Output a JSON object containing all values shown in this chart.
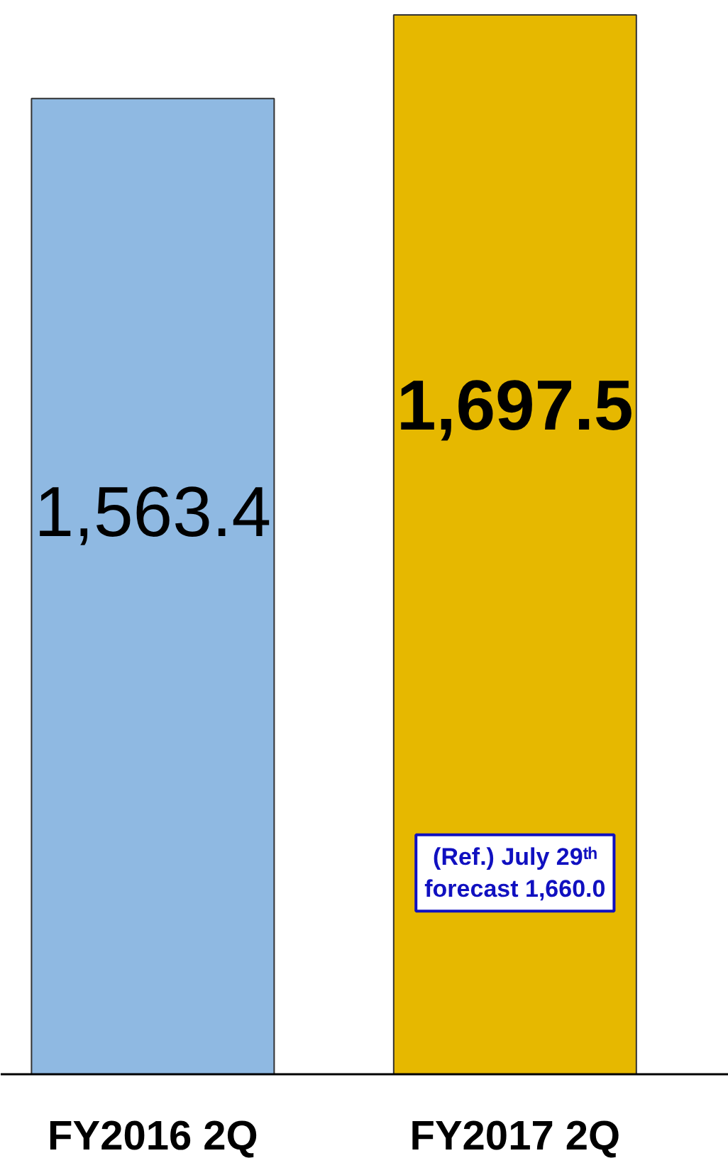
{
  "chart_data": {
    "type": "bar",
    "categories": [
      "FY2016 2Q",
      "FY2017 2Q"
    ],
    "values": [
      1563.4,
      1697.5
    ],
    "colors": [
      "#8fb9e2",
      "#e6b800"
    ],
    "value_labels": [
      "1,563.4",
      "1,697.5"
    ],
    "annotations": [
      "(Ref.) July 29ᵗʰ\nforecast 1,660.0"
    ],
    "grid": false
  }
}
